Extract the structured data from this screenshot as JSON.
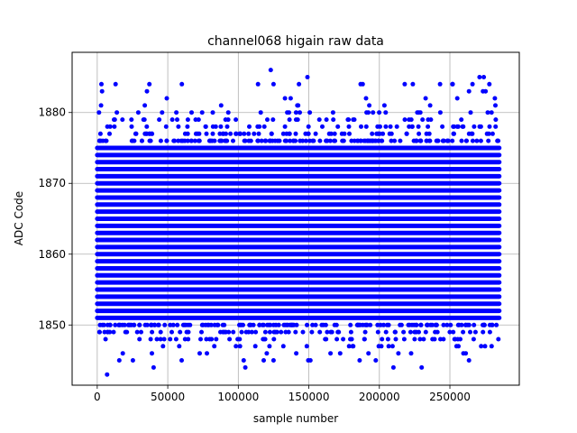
{
  "chart_data": {
    "type": "scatter",
    "title": "channel068 higain raw data",
    "xlabel": "sample number",
    "ylabel": "ADC Code",
    "xlim": [
      -17800,
      299200
    ],
    "ylim": [
      1841.5,
      1888.5
    ],
    "xticks": [
      0,
      50000,
      100000,
      150000,
      200000,
      250000
    ],
    "yticks": [
      1850,
      1860,
      1870,
      1880
    ],
    "xtick_labels": [
      "0",
      "50000",
      "100000",
      "150000",
      "200000",
      "250000"
    ],
    "ytick_labels": [
      "1850",
      "1860",
      "1870",
      "1880"
    ],
    "grid": true,
    "marker_color": "#0000ff",
    "x_range": [
      0,
      285000
    ],
    "band": {
      "dense_min": 1851,
      "dense_max": 1875,
      "frequent_levels": [
        1876,
        1877,
        1878,
        1879,
        1880,
        1850,
        1849,
        1848
      ],
      "sparse_levels": [
        1881,
        1882,
        1883,
        1884,
        1847,
        1846,
        1845
      ]
    },
    "outliers": [
      {
        "x": 7000,
        "y": 1843
      },
      {
        "x": 105000,
        "y": 1844
      },
      {
        "x": 40000,
        "y": 1844
      },
      {
        "x": 210000,
        "y": 1844
      },
      {
        "x": 230000,
        "y": 1844
      },
      {
        "x": 118000,
        "y": 1845
      },
      {
        "x": 186000,
        "y": 1845
      },
      {
        "x": 123000,
        "y": 1886
      },
      {
        "x": 149000,
        "y": 1885
      },
      {
        "x": 271000,
        "y": 1885
      },
      {
        "x": 274000,
        "y": 1885
      },
      {
        "x": 3000,
        "y": 1884
      },
      {
        "x": 13000,
        "y": 1884
      },
      {
        "x": 37000,
        "y": 1884
      },
      {
        "x": 60000,
        "y": 1884
      },
      {
        "x": 114000,
        "y": 1884
      },
      {
        "x": 125000,
        "y": 1884
      },
      {
        "x": 143000,
        "y": 1884
      },
      {
        "x": 218000,
        "y": 1884
      },
      {
        "x": 243000,
        "y": 1884
      },
      {
        "x": 252000,
        "y": 1884
      },
      {
        "x": 266000,
        "y": 1884
      },
      {
        "x": 278000,
        "y": 1884
      }
    ]
  }
}
